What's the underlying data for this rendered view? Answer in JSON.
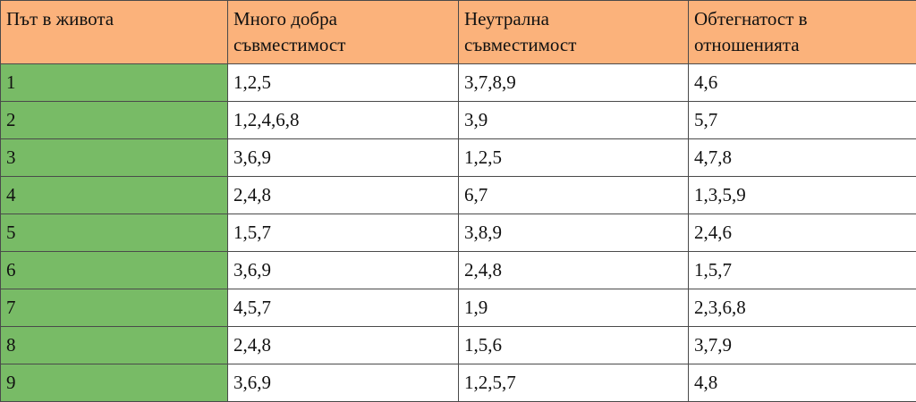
{
  "table": {
    "header": [
      "Път в живота",
      "Много добра съвместимост",
      "Неутрална съвместимост",
      "Обтегнатост в отношенията"
    ],
    "rows": [
      [
        "1",
        "1,2,5",
        "3,7,8,9",
        "4,6"
      ],
      [
        "2",
        "1,2,4,6,8",
        "3,9",
        "5,7"
      ],
      [
        "3",
        "3,6,9",
        "1,2,5",
        "4,7,8"
      ],
      [
        "4",
        "2,4,8",
        "6,7",
        "1,3,5,9"
      ],
      [
        "5",
        "1,5,7",
        "3,8,9",
        "2,4,6"
      ],
      [
        "6",
        "3,6,9",
        "2,4,8",
        "1,5,7"
      ],
      [
        "7",
        "4,5,7",
        "1,9",
        "2,3,6,8"
      ],
      [
        "8",
        "2,4,8",
        "1,5,6",
        "3,7,9"
      ],
      [
        "9",
        "3,6,9",
        "1,2,5,7",
        "4,8"
      ]
    ]
  }
}
